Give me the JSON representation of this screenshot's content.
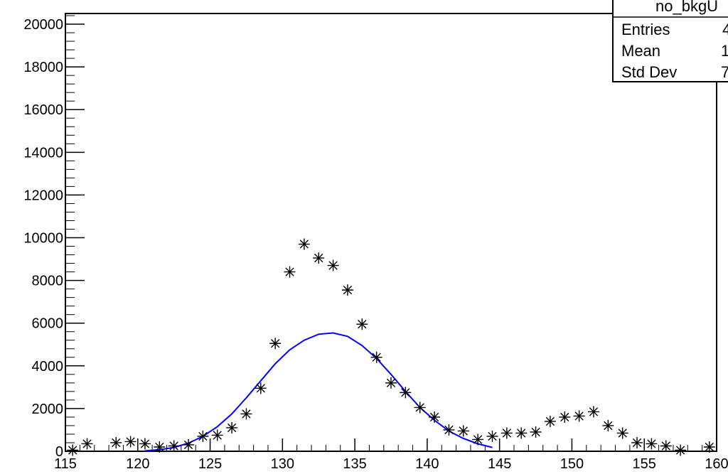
{
  "chart_data": {
    "type": "scatter",
    "xlim": [
      115,
      160
    ],
    "ylim": [
      0,
      20500
    ],
    "x_ticks": [
      115,
      120,
      125,
      130,
      135,
      140,
      145,
      150,
      155,
      160
    ],
    "x_tick_labels": [
      "115",
      "120",
      "125",
      "130",
      "135",
      "140",
      "145",
      "150",
      "155",
      "160"
    ],
    "y_ticks": [
      0,
      2000,
      4000,
      6000,
      8000,
      10000,
      12000,
      14000,
      16000,
      18000,
      20000
    ],
    "y_tick_labels": [
      "0",
      "2000",
      "4000",
      "6000",
      "8000",
      "10000",
      "12000",
      "14000",
      "16000",
      "18000",
      "20000"
    ],
    "grid": false,
    "series": [
      {
        "kind": "markers",
        "marker": "asterisk",
        "color": "#000000",
        "x": [
          115.5,
          116.5,
          118.5,
          119.5,
          120.5,
          121.5,
          122.5,
          123.5,
          124.5,
          125.5,
          126.5,
          127.5,
          128.5,
          129.5,
          130.5,
          131.5,
          132.5,
          133.5,
          134.5,
          135.5,
          136.5,
          137.5,
          138.5,
          139.5,
          140.5,
          141.5,
          142.5,
          143.5,
          144.5,
          145.5,
          146.5,
          147.5,
          148.5,
          149.5,
          150.5,
          151.5,
          152.5,
          153.5,
          154.5,
          155.5,
          156.5,
          157.5,
          159.5
        ],
        "y": [
          50,
          350,
          400,
          450,
          350,
          200,
          250,
          300,
          700,
          750,
          1100,
          1750,
          2950,
          5050,
          8400,
          9700,
          9050,
          8700,
          7550,
          5950,
          4400,
          3200,
          2750,
          2050,
          1600,
          1000,
          950,
          550,
          700,
          850,
          850,
          900,
          1400,
          1600,
          1650,
          1850,
          1200,
          850,
          400,
          350,
          250,
          50,
          200
        ]
      },
      {
        "kind": "curve",
        "color": "#0000ff",
        "x": [
          120.5,
          121.5,
          122.5,
          123.5,
          124.5,
          125.5,
          126.5,
          127.5,
          128.5,
          129.5,
          130.5,
          131.5,
          132.5,
          133.5,
          134.5,
          135.5,
          136.5,
          137.5,
          138.5,
          139.5,
          140.5,
          141.5,
          142.5,
          143.5,
          144.5
        ],
        "y": [
          20,
          70,
          180,
          380,
          700,
          1150,
          1750,
          2500,
          3300,
          4100,
          4750,
          5200,
          5480,
          5540,
          5380,
          4950,
          4350,
          3600,
          2800,
          2050,
          1450,
          950,
          600,
          350,
          180
        ]
      }
    ]
  },
  "stats_box": {
    "title": "no_bkgU",
    "rows": [
      {
        "label": "Entries",
        "value": "4"
      },
      {
        "label": "Mean",
        "value": "1"
      },
      {
        "label": "Std Dev",
        "value": "7"
      }
    ]
  }
}
